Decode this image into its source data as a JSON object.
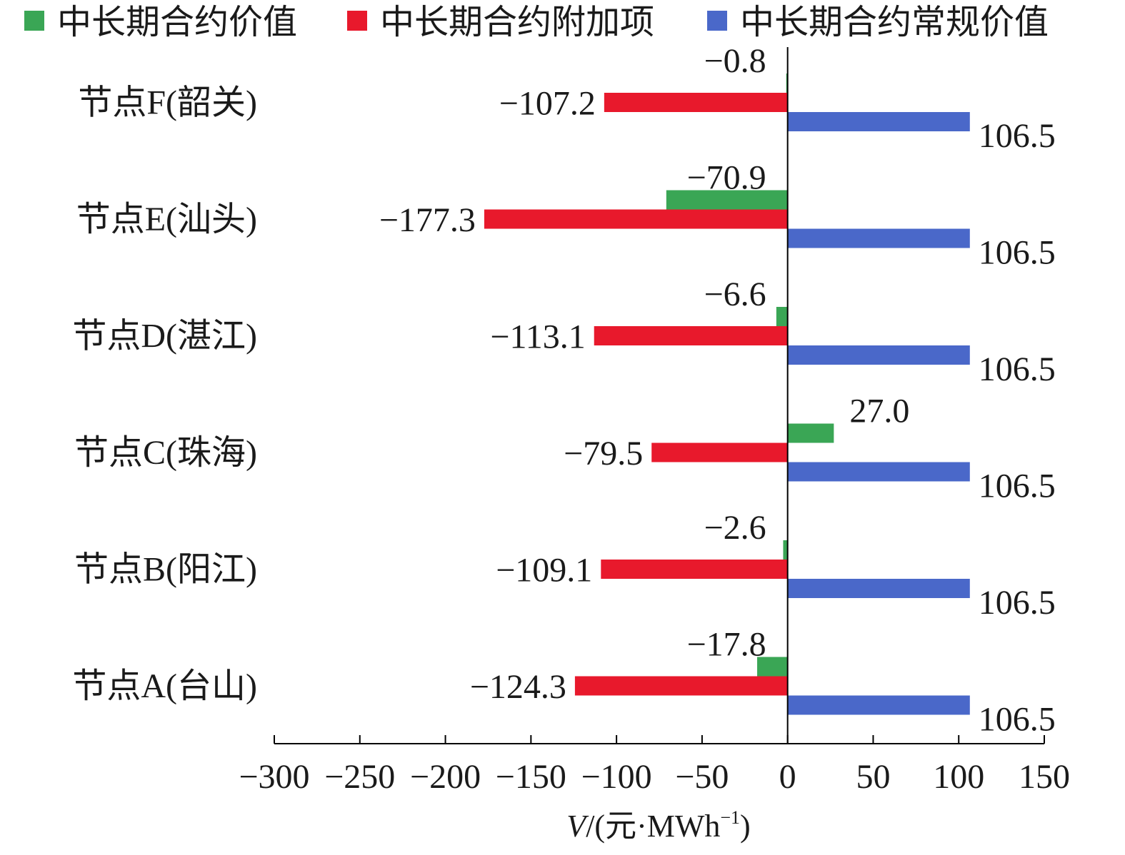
{
  "chart_data": {
    "type": "bar",
    "orientation": "horizontal",
    "categories": [
      "节点F(韶关)",
      "节点E(汕头)",
      "节点D(湛江)",
      "节点C(珠海)",
      "节点B(阳江)",
      "节点A(台山)"
    ],
    "series": [
      {
        "name": "中长期合约价值",
        "color": "#3aa655",
        "values": [
          -0.8,
          -70.9,
          -6.6,
          27.0,
          -2.6,
          -17.8
        ]
      },
      {
        "name": "中长期合约附加项",
        "color": "#e8192c",
        "values": [
          -107.2,
          -177.3,
          -113.1,
          -79.5,
          -109.1,
          -124.3
        ]
      },
      {
        "name": "中长期合约常规价值",
        "color": "#4a68c9",
        "values": [
          106.5,
          106.5,
          106.5,
          106.5,
          106.5,
          106.5
        ]
      }
    ],
    "data_labels": [
      [
        "−0.8",
        "−70.9",
        "−6.6",
        "27.0",
        "−2.6",
        "−17.8"
      ],
      [
        "−107.2",
        "−177.3",
        "−113.1",
        "−79.5",
        "−109.1",
        "−124.3"
      ],
      [
        "106.5",
        "106.5",
        "106.5",
        "106.5",
        "106.5",
        "106.5"
      ]
    ],
    "xlim": [
      -300,
      150
    ],
    "xticks": [
      -300,
      -250,
      -200,
      -150,
      -100,
      -50,
      0,
      50,
      100,
      150
    ],
    "xtick_labels": [
      "−300",
      "−250",
      "−200",
      "−150",
      "−100",
      "−50",
      "0",
      "50",
      "100",
      "150"
    ],
    "xlabel_var": "V",
    "xlabel_rest": "/(元·MWh",
    "xlabel_sup": "−1",
    "xlabel_close": ")",
    "ylabel": "",
    "title": "",
    "legend_position": "top",
    "grid": false
  }
}
